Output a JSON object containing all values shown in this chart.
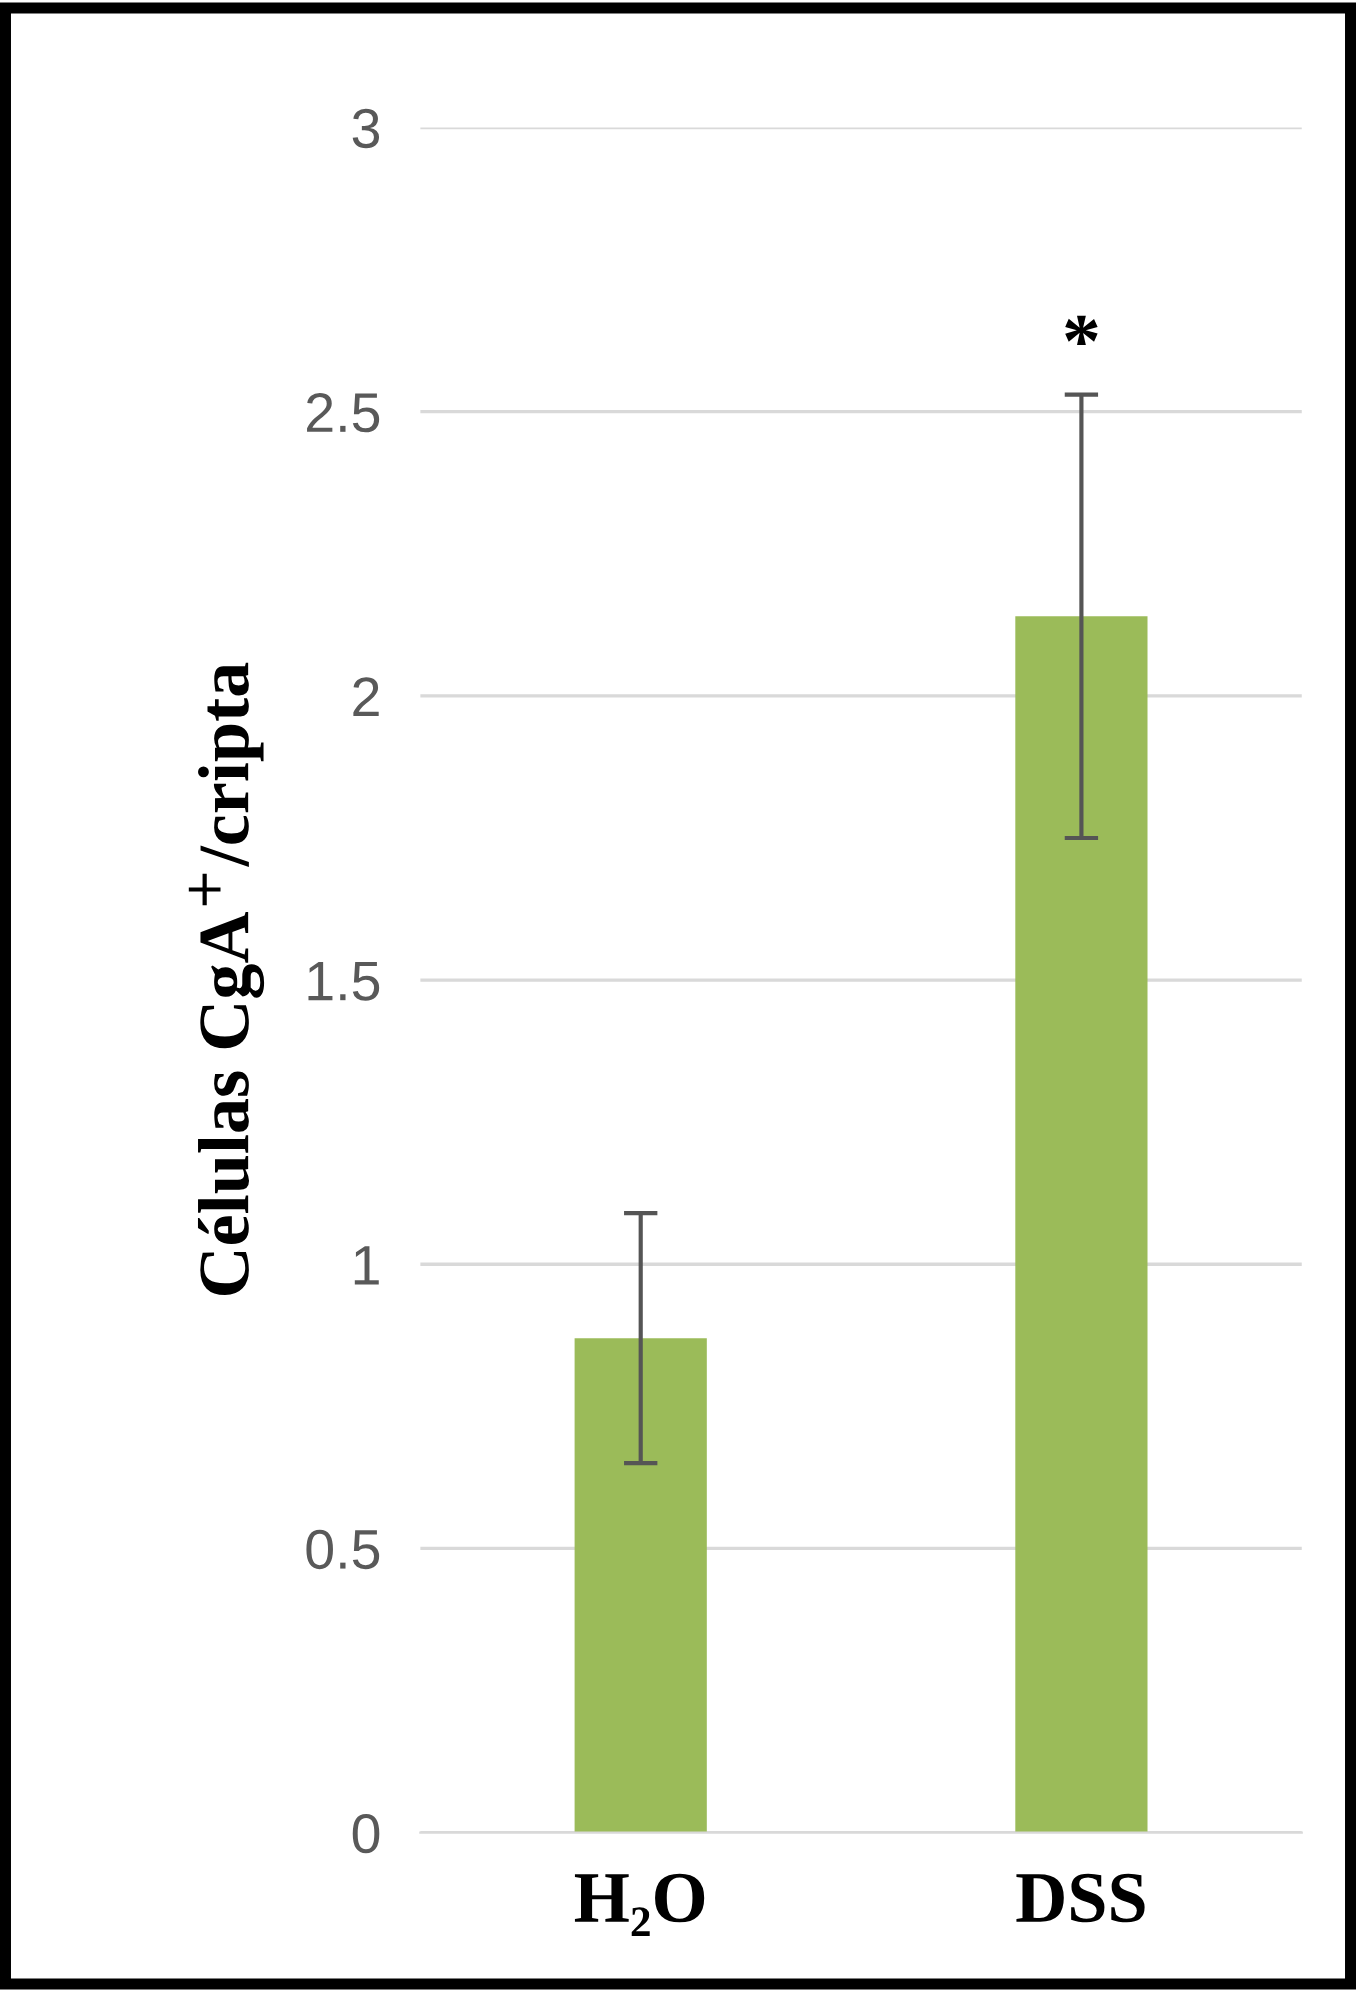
{
  "chart_data": {
    "type": "bar",
    "ylabel": "Células CgA$^{+}$/cripta",
    "categories": [
      "H₂O",
      "DSS"
    ],
    "series": [
      {
        "color": "#9bbb59",
        "values": [
          0.87,
          2.14
        ],
        "errors": [
          0.22,
          0.39
        ]
      }
    ],
    "ylim": [
      0,
      3
    ],
    "yticks": [
      0,
      0.5,
      1,
      1.5,
      2,
      2.5,
      3
    ],
    "grid": "y",
    "legend": false,
    "annotations": [
      {
        "text": "*",
        "x": "DSS",
        "y": 2.53
      }
    ]
  }
}
